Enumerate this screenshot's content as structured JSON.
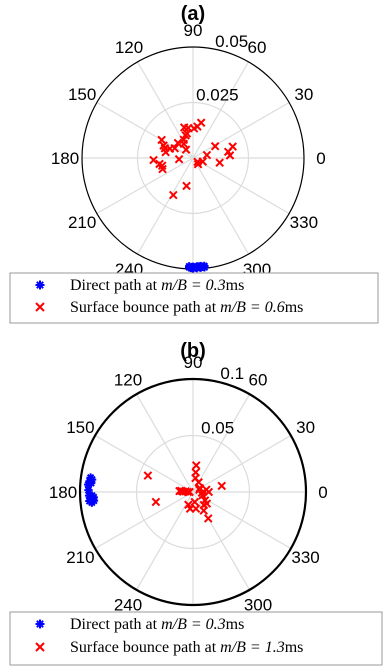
{
  "chart_data": [
    {
      "type": "scatter",
      "coordinate_system": "polar",
      "title": "(a)",
      "theta_ticks": [
        "0",
        "30",
        "60",
        "90",
        "120",
        "150",
        "180",
        "210",
        "240",
        "300",
        "330"
      ],
      "r_ticks": [
        "0.025",
        "0.05"
      ],
      "rlim": [
        0,
        0.05
      ],
      "grid": true,
      "legend_position": "bottom",
      "series": [
        {
          "name": "Direct path at m/B = 0.3ms",
          "marker": "asterisk",
          "color": "#0000ff",
          "points": [
            {
              "theta": -84,
              "r": 0.0495
            },
            {
              "theta": -85,
              "r": 0.0492
            },
            {
              "theta": -86,
              "r": 0.0495
            },
            {
              "theta": -87,
              "r": 0.049
            },
            {
              "theta": -88,
              "r": 0.0496
            },
            {
              "theta": -89,
              "r": 0.0493
            },
            {
              "theta": -90,
              "r": 0.049
            },
            {
              "theta": -91,
              "r": 0.0495
            },
            {
              "theta": -92,
              "r": 0.0493
            },
            {
              "theta": -86,
              "r": 0.0488
            },
            {
              "theta": -88,
              "r": 0.0489
            },
            {
              "theta": -90,
              "r": 0.0497
            },
            {
              "theta": -92,
              "r": 0.0488
            },
            {
              "theta": -84,
              "r": 0.0489
            }
          ]
        },
        {
          "name": "Surface bounce path at m/B = 0.6ms",
          "marker": "x",
          "color": "#ff0000",
          "points": [
            {
              "theta": 77,
              "r": 0.0163
            },
            {
              "theta": 82,
              "r": 0.0143
            },
            {
              "theta": 88,
              "r": 0.0133
            },
            {
              "theta": 99,
              "r": 0.0137
            },
            {
              "theta": 106,
              "r": 0.0143
            },
            {
              "theta": 104,
              "r": 0.0114
            },
            {
              "theta": 108,
              "r": 0.0107
            },
            {
              "theta": 117,
              "r": 0.0092
            },
            {
              "theta": 123,
              "r": 0.0076
            },
            {
              "theta": 130,
              "r": 0.0049
            },
            {
              "theta": 135,
              "r": 0.0096
            },
            {
              "theta": 150,
              "r": 0.0163
            },
            {
              "theta": 157,
              "r": 0.0144
            },
            {
              "theta": 161,
              "r": 0.0134
            },
            {
              "theta": 168,
              "r": 0.0126
            },
            {
              "theta": 183,
              "r": 0.0178
            },
            {
              "theta": 190,
              "r": 0.0153
            },
            {
              "theta": 194,
              "r": 0.0143
            },
            {
              "theta": 200,
              "r": 0.0146
            },
            {
              "theta": 158,
              "r": 0.0112
            },
            {
              "theta": 152,
              "r": 0.0093
            },
            {
              "theta": 185,
              "r": 0.0063
            },
            {
              "theta": 28,
              "r": 0.0113
            },
            {
              "theta": 4,
              "r": 0.0167
            },
            {
              "theta": 16,
              "r": 0.0186
            },
            {
              "theta": 10,
              "r": 0.0161
            },
            {
              "theta": -10,
              "r": 0.0122
            },
            {
              "theta": -40,
              "r": 0.0027
            },
            {
              "theta": -51,
              "r": 0.0036
            },
            {
              "theta": -20,
              "r": 0.0047
            },
            {
              "theta": 12,
              "r": 0.0064
            },
            {
              "theta": -103,
              "r": 0.0129
            },
            {
              "theta": -118,
              "r": 0.0189
            }
          ]
        }
      ],
      "legend_labels": [
        {
          "text": "Direct path at ",
          "math": "m/B = 0.3",
          "unit": "ms"
        },
        {
          "text": "Surface bounce path at ",
          "math": "m/B = 0.6",
          "unit": "ms"
        }
      ]
    },
    {
      "type": "scatter",
      "coordinate_system": "polar",
      "title": "(b)",
      "theta_ticks": [
        "0",
        "30",
        "60",
        "90",
        "120",
        "150",
        "180",
        "210",
        "240",
        "300",
        "330"
      ],
      "r_ticks": [
        "0.05",
        "0.1"
      ],
      "rlim": [
        0,
        0.1
      ],
      "grid": true,
      "legend_position": "bottom",
      "series": [
        {
          "name": "Direct path at m/B = 0.3ms",
          "marker": "asterisk",
          "color": "#0000ff",
          "points": [
            {
              "theta": -178,
              "r": 0.092
            },
            {
              "theta": -178,
              "r": 0.0895
            },
            {
              "theta": -177,
              "r": 0.088
            },
            {
              "theta": -176,
              "r": 0.0905
            },
            {
              "theta": -175,
              "r": 0.092
            },
            {
              "theta": -175,
              "r": 0.088
            },
            {
              "theta": -174,
              "r": 0.09
            },
            {
              "theta": 176,
              "r": 0.093
            },
            {
              "theta": 175,
              "r": 0.0905
            },
            {
              "theta": 174,
              "r": 0.092
            },
            {
              "theta": 173,
              "r": 0.09
            },
            {
              "theta": 179,
              "r": 0.0925
            },
            {
              "theta": 172,
              "r": 0.0915
            }
          ]
        },
        {
          "name": "Surface bounce path at m/B = 1.3ms",
          "marker": "x",
          "color": "#ff0000",
          "points": [
            {
              "theta": 83,
              "r": 0.0237
            },
            {
              "theta": 82,
              "r": 0.0175
            },
            {
              "theta": 80,
              "r": 0.0125
            },
            {
              "theta": 60,
              "r": 0.01
            },
            {
              "theta": 160,
              "r": 0.0425
            },
            {
              "theta": 176,
              "r": 0.012
            },
            {
              "theta": 178,
              "r": 0.0088
            },
            {
              "theta": 175,
              "r": 0.0065
            },
            {
              "theta": 180,
              "r": 0.0045
            },
            {
              "theta": 174,
              "r": 0.0105
            },
            {
              "theta": 195,
              "r": 0.034
            },
            {
              "theta": 180,
              "r": 0.003
            },
            {
              "theta": 30,
              "r": 0.007
            },
            {
              "theta": 10,
              "r": 0.012
            },
            {
              "theta": -5,
              "r": 0.008
            },
            {
              "theta": 12,
              "r": 0.026
            },
            {
              "theta": -20,
              "r": 0.009
            },
            {
              "theta": -35,
              "r": 0.013
            },
            {
              "theta": -50,
              "r": 0.015
            },
            {
              "theta": -60,
              "r": 0.019
            },
            {
              "theta": -40,
              "r": 0.016
            },
            {
              "theta": -80,
              "r": 0.015
            },
            {
              "theta": -100,
              "r": 0.015
            },
            {
              "theta": -110,
              "r": 0.012
            },
            {
              "theta": -80,
              "r": 0.009
            },
            {
              "theta": -60,
              "r": 0.027
            },
            {
              "theta": 0,
              "r": 0.014
            },
            {
              "theta": 20,
              "r": 0.006
            }
          ]
        }
      ],
      "legend_labels": [
        {
          "text": "Direct path at ",
          "math": "m/B = 0.3",
          "unit": "ms"
        },
        {
          "text": "Surface bounce path at ",
          "math": "m/B = 1.3",
          "unit": "ms"
        }
      ]
    }
  ]
}
